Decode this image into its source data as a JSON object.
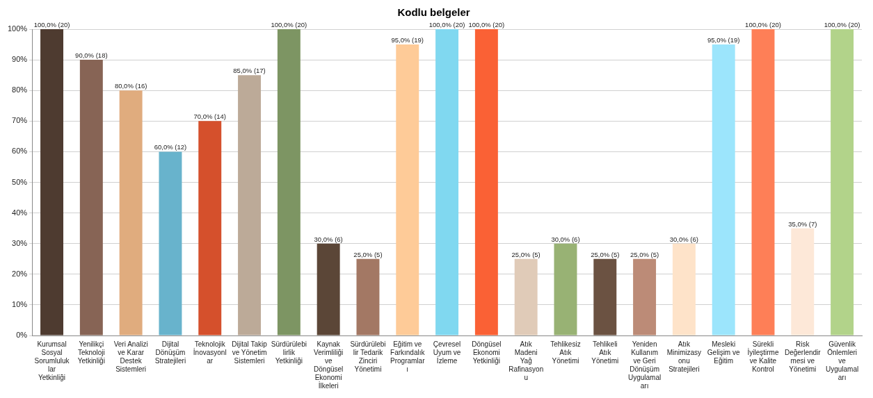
{
  "chart_data": {
    "type": "bar",
    "title": "Kodlu belgeler",
    "categories": [
      "Kurumsal Sosyal Sorumluluklar Yetkinliği",
      "Yenilikçi Teknoloji Yetkinliği",
      "Veri Analizi ve Karar Destek Sistemleri",
      "Dijital Dönüşüm Stratejileri",
      "Teknolojik İnovasyonlar",
      "Dijital Takip ve Yönetim Sistemleri",
      "Sürdürülebilirlik Yetkinliği",
      "Kaynak Verimliliği ve Döngüsel Ekonomi İlkeleri",
      "Sürdürülebilir Tedarik Zinciri Yönetimi",
      "Eğitim ve Farkındalık Programları",
      "Çevresel Uyum ve İzleme",
      "Döngüsel Ekonomi Yetkinliği",
      "Atık Madeni Yağ Rafinasyonu",
      "Tehlikesiz Atık Yönetimi",
      "Tehlikeli Atık Yönetimi",
      "Yeniden Kullanım ve Geri Dönüşüm Uygulamaları",
      "Atık Minimizasyonu Stratejileri",
      "Mesleki Gelişim ve Eğitim",
      "Sürekli İyileştirme ve Kalite Kontrol",
      "Risk Değerlendirmesi ve Yönetimi",
      "Güvenlik Önlemleri ve Uygulamaları"
    ],
    "values": [
      100,
      90,
      80,
      60,
      70,
      85,
      100,
      30,
      25,
      95,
      100,
      100,
      25,
      30,
      25,
      25,
      30,
      95,
      100,
      35,
      100
    ],
    "value_labels": [
      "100,0% (20)",
      "90,0% (18)",
      "80,0% (16)",
      "60,0% (12)",
      "70,0% (14)",
      "85,0% (17)",
      "100,0% (20)",
      "30,0% (6)",
      "25,0% (5)",
      "95,0% (19)",
      "100,0% (20)",
      "100,0% (20)",
      "25,0% (5)",
      "30,0% (6)",
      "25,0% (5)",
      "25,0% (5)",
      "30,0% (6)",
      "95,0% (19)",
      "100,0% (20)",
      "35,0% (7)",
      "100,0% (20)"
    ],
    "colors": [
      "#4e3b30",
      "#876455",
      "#e0ac7e",
      "#68b3cc",
      "#d5502c",
      "#bcaa98",
      "#7d9563",
      "#5b4637",
      "#a37864",
      "#fecb98",
      "#80d8f0",
      "#fa6135",
      "#e0cbb8",
      "#98b274",
      "#6b5242",
      "#bc8b77",
      "#fee3c9",
      "#9ce5fc",
      "#fe7f57",
      "#fde8d8",
      "#b2d38a"
    ],
    "ylim": [
      0,
      100
    ],
    "yticks": [
      {
        "value": 0,
        "label": "0%"
      },
      {
        "value": 10,
        "label": "10%"
      },
      {
        "value": 20,
        "label": "20%"
      },
      {
        "value": 30,
        "label": "30%"
      },
      {
        "value": 40,
        "label": "40%"
      },
      {
        "value": 50,
        "label": "50%"
      },
      {
        "value": 60,
        "label": "60%"
      },
      {
        "value": 70,
        "label": "70%"
      },
      {
        "value": 80,
        "label": "80%"
      },
      {
        "value": 90,
        "label": "90%"
      },
      {
        "value": 100,
        "label": "100%"
      }
    ],
    "grid": "y",
    "legend": false
  }
}
